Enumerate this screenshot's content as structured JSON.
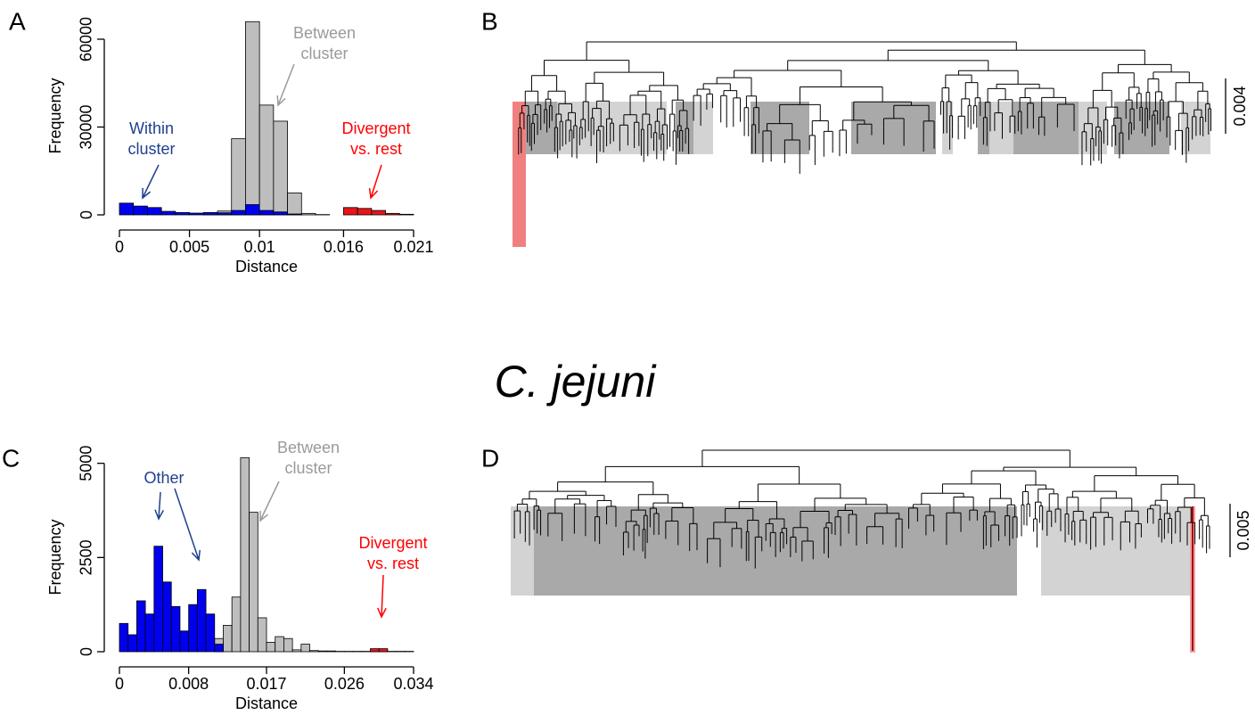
{
  "title": "C. jejuni",
  "chart_data": [
    {
      "type": "histogram",
      "panel": "A",
      "xlabel": "Distance",
      "ylabel": "Frequency",
      "bins": [
        0,
        0.001,
        0.002,
        0.003,
        0.004,
        0.005,
        0.006,
        0.007,
        0.008,
        0.009,
        0.01,
        0.011,
        0.012,
        0.013,
        0.014,
        0.015,
        0.016,
        0.017,
        0.018,
        0.019,
        0.02,
        0.021
      ],
      "xlim": [
        0,
        0.021
      ],
      "xticks": [
        0,
        0.005,
        0.01,
        0.016,
        0.021
      ],
      "ylim": [
        0,
        67000
      ],
      "yticks": [
        0,
        30000,
        60000
      ],
      "series": [
        {
          "color": "#bebebe",
          "label": [
            "Between",
            "cluster"
          ],
          "label_color": "#9a9a9a",
          "values": [
            0,
            0,
            0,
            0,
            0,
            0,
            300,
            1300,
            26000,
            66000,
            37500,
            32000,
            7500,
            500,
            100,
            0,
            0,
            0,
            0,
            0,
            0
          ]
        },
        {
          "color": "#0000ee",
          "label": [
            "Within",
            "cluster"
          ],
          "label_color": "#1f3f8f",
          "values": [
            4000,
            3000,
            2500,
            1200,
            800,
            600,
            800,
            700,
            1500,
            3500,
            1500,
            1000,
            300,
            0,
            0,
            0,
            0,
            0,
            0,
            0,
            0
          ]
        },
        {
          "color": "#e8141a",
          "label": [
            "Divergent",
            "vs. rest"
          ],
          "label_color": "#ff0000",
          "values": [
            0,
            0,
            0,
            0,
            0,
            0,
            0,
            0,
            0,
            0,
            0,
            0,
            0,
            0,
            0,
            0,
            2500,
            2200,
            1500,
            500,
            200
          ]
        }
      ]
    },
    {
      "type": "histogram",
      "panel": "C",
      "xlabel": "Distance",
      "ylabel": "Frequency",
      "bins": [
        0,
        0.001,
        0.002,
        0.003,
        0.004,
        0.005,
        0.006,
        0.007,
        0.008,
        0.009,
        0.01,
        0.011,
        0.012,
        0.013,
        0.014,
        0.015,
        0.016,
        0.017,
        0.018,
        0.019,
        0.02,
        0.021,
        0.022,
        0.023,
        0.024,
        0.025,
        0.026,
        0.027,
        0.028,
        0.029,
        0.03,
        0.031,
        0.032,
        0.033,
        0.034
      ],
      "xlim": [
        0,
        0.034
      ],
      "xticks": [
        0,
        0.008,
        0.017,
        0.026,
        0.034
      ],
      "ylim": [
        0,
        5300
      ],
      "yticks": [
        0,
        2500,
        5000
      ],
      "series": [
        {
          "color": "#bebebe",
          "label": [
            "Between",
            "cluster"
          ],
          "label_color": "#9a9a9a",
          "values": [
            0,
            0,
            0,
            0,
            0,
            0,
            0,
            0,
            0,
            0,
            0,
            350,
            700,
            1450,
            5150,
            3700,
            900,
            250,
            400,
            350,
            50,
            200,
            30,
            20,
            20,
            10,
            10,
            10,
            10,
            10,
            10,
            10,
            10,
            10
          ]
        },
        {
          "color": "#0000ee",
          "label": [
            "Other"
          ],
          "label_color": "#1f3f8f",
          "values": [
            750,
            450,
            1350,
            1000,
            2800,
            1850,
            1200,
            550,
            1250,
            1650,
            1000,
            200,
            0,
            0,
            0,
            0,
            0,
            0,
            0,
            0,
            0,
            0,
            0,
            0,
            0,
            0,
            0,
            0,
            0,
            0,
            0,
            0,
            0,
            0
          ]
        },
        {
          "color": "#e8141a",
          "label": [
            "Divergent",
            "vs. rest"
          ],
          "label_color": "#ff0000",
          "values": [
            0,
            0,
            0,
            0,
            0,
            0,
            0,
            0,
            0,
            0,
            0,
            0,
            0,
            0,
            0,
            0,
            0,
            0,
            0,
            0,
            0,
            0,
            0,
            0,
            0,
            0,
            0,
            0,
            0,
            80,
            80,
            0,
            0,
            0
          ]
        }
      ]
    }
  ],
  "trees": [
    {
      "panel": "B",
      "scale_label": "0.004"
    },
    {
      "panel": "D",
      "scale_label": "0.005"
    }
  ]
}
